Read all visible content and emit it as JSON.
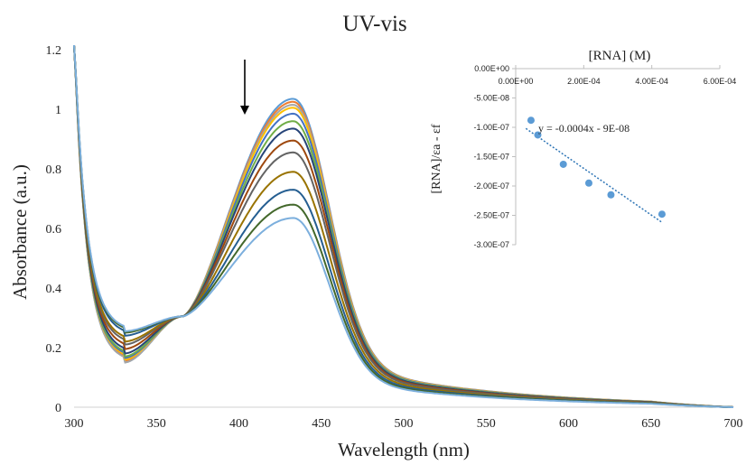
{
  "chart_data": [
    {
      "type": "line",
      "title": "UV-vis",
      "xlabel": "Wavelength (nm)",
      "ylabel": "Absorbance (a.u.)",
      "xlim": [
        300,
        700
      ],
      "ylim": [
        0,
        1.2
      ],
      "x_ticks": [
        "300",
        "350",
        "400",
        "450",
        "500",
        "550",
        "600",
        "650",
        "700"
      ],
      "y_ticks": [
        "0",
        "0.2",
        "0.4",
        "0.6",
        "0.8",
        "1",
        "1.2"
      ],
      "grid": false,
      "legend": "none",
      "annotation": "downward arrow at ~405 nm indicating decreasing absorbance",
      "series": [
        {
          "color": "#5b9bd5",
          "peak": 1.035,
          "shoulder": 0.31,
          "min": 0.15
        },
        {
          "color": "#ed7d31",
          "peak": 1.025,
          "shoulder": 0.31,
          "min": 0.155
        },
        {
          "color": "#a5a5a5",
          "peak": 1.015,
          "shoulder": 0.3,
          "min": 0.15
        },
        {
          "color": "#ffc000",
          "peak": 1.005,
          "shoulder": 0.3,
          "min": 0.16
        },
        {
          "color": "#4472c4",
          "peak": 0.985,
          "shoulder": 0.29,
          "min": 0.165
        },
        {
          "color": "#70ad47",
          "peak": 0.96,
          "shoulder": 0.29,
          "min": 0.17
        },
        {
          "color": "#264478",
          "peak": 0.935,
          "shoulder": 0.28,
          "min": 0.18
        },
        {
          "color": "#9e480e",
          "peak": 0.895,
          "shoulder": 0.27,
          "min": 0.195
        },
        {
          "color": "#636363",
          "peak": 0.855,
          "shoulder": 0.26,
          "min": 0.21
        },
        {
          "color": "#997300",
          "peak": 0.79,
          "shoulder": 0.26,
          "min": 0.22
        },
        {
          "color": "#255e91",
          "peak": 0.73,
          "shoulder": 0.25,
          "min": 0.24
        },
        {
          "color": "#43682b",
          "peak": 0.68,
          "shoulder": 0.25,
          "min": 0.25
        },
        {
          "color": "#7cafdd",
          "peak": 0.635,
          "shoulder": 0.25,
          "min": 0.255
        }
      ]
    },
    {
      "type": "scatter",
      "title": "[RNA] (M)",
      "ylabel": "[RNA]/εa - εf",
      "xlim": [
        0,
        0.0006
      ],
      "ylim": [
        -3e-07,
        0
      ],
      "x_ticks": [
        "0.00E+00",
        "2.00E-04",
        "4.00E-04",
        "6.00E-04"
      ],
      "y_ticks": [
        "0.00E+00",
        "-5.00E-08",
        "-1.00E-07",
        "-1.50E-07",
        "-2.00E-07",
        "-2.50E-07",
        "-3.00E-07"
      ],
      "x_axis_position": "top",
      "points": {
        "x": [
          4.5e-05,
          6.5e-05,
          0.00014,
          0.000215,
          0.00028,
          0.00043
        ],
        "y": [
          -8.8e-08,
          -1.13e-07,
          -1.63e-07,
          -1.95e-07,
          -2.15e-07,
          -2.48e-07
        ]
      },
      "trendline": {
        "label": "y = -0.0004x - 9E-08",
        "slope": -0.0004,
        "intercept": -9e-08,
        "x_range": [
          3e-05,
          0.00043
        ],
        "style": "dotted",
        "color": "#2e75b6"
      },
      "marker_color": "#5b9bd5"
    }
  ]
}
